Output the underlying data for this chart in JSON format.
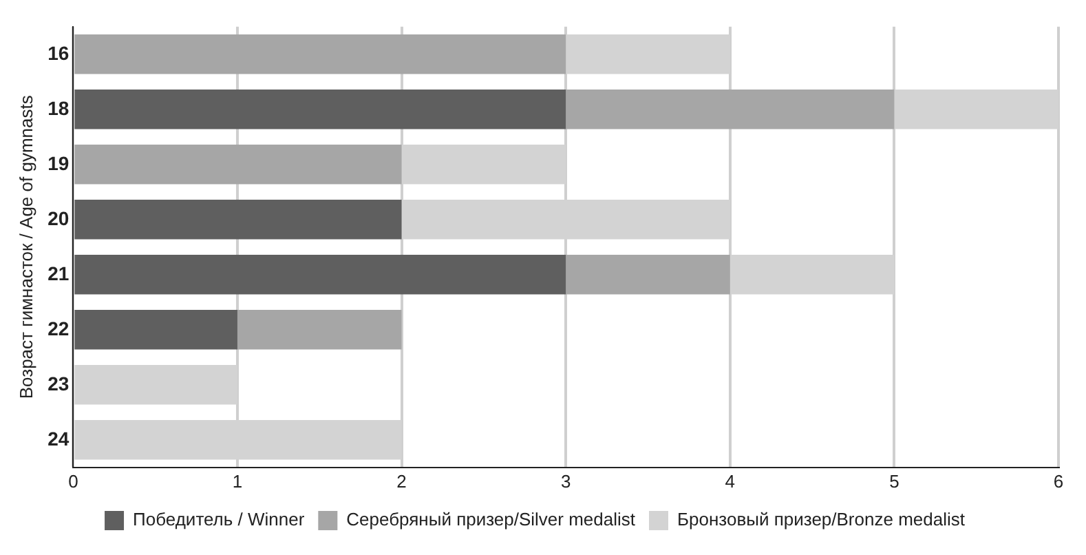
{
  "chart_data": {
    "type": "bar",
    "orientation": "horizontal",
    "stacked": true,
    "ylabel": "Возраст гимнасток / Age of gymnasts",
    "categories": [
      "16",
      "18",
      "19",
      "20",
      "21",
      "22",
      "23",
      "24"
    ],
    "series": [
      {
        "name": "Победитель / Winner",
        "color": "#5f5f5f",
        "values": [
          0,
          3,
          0,
          2,
          3,
          1,
          0,
          0
        ]
      },
      {
        "name": "Серебряный призер/Silver medalist",
        "color": "#a6a6a6",
        "values": [
          3,
          2,
          2,
          0,
          1,
          1,
          0,
          0
        ]
      },
      {
        "name": "Бронзовый призер/Bronze medalist",
        "color": "#d3d3d3",
        "values": [
          1,
          1,
          1,
          2,
          1,
          0,
          1,
          2
        ]
      }
    ],
    "xlim": [
      0,
      6
    ],
    "xticks": [
      0,
      1,
      2,
      3,
      4,
      5,
      6
    ],
    "grid": "x",
    "legend": "bottom"
  }
}
